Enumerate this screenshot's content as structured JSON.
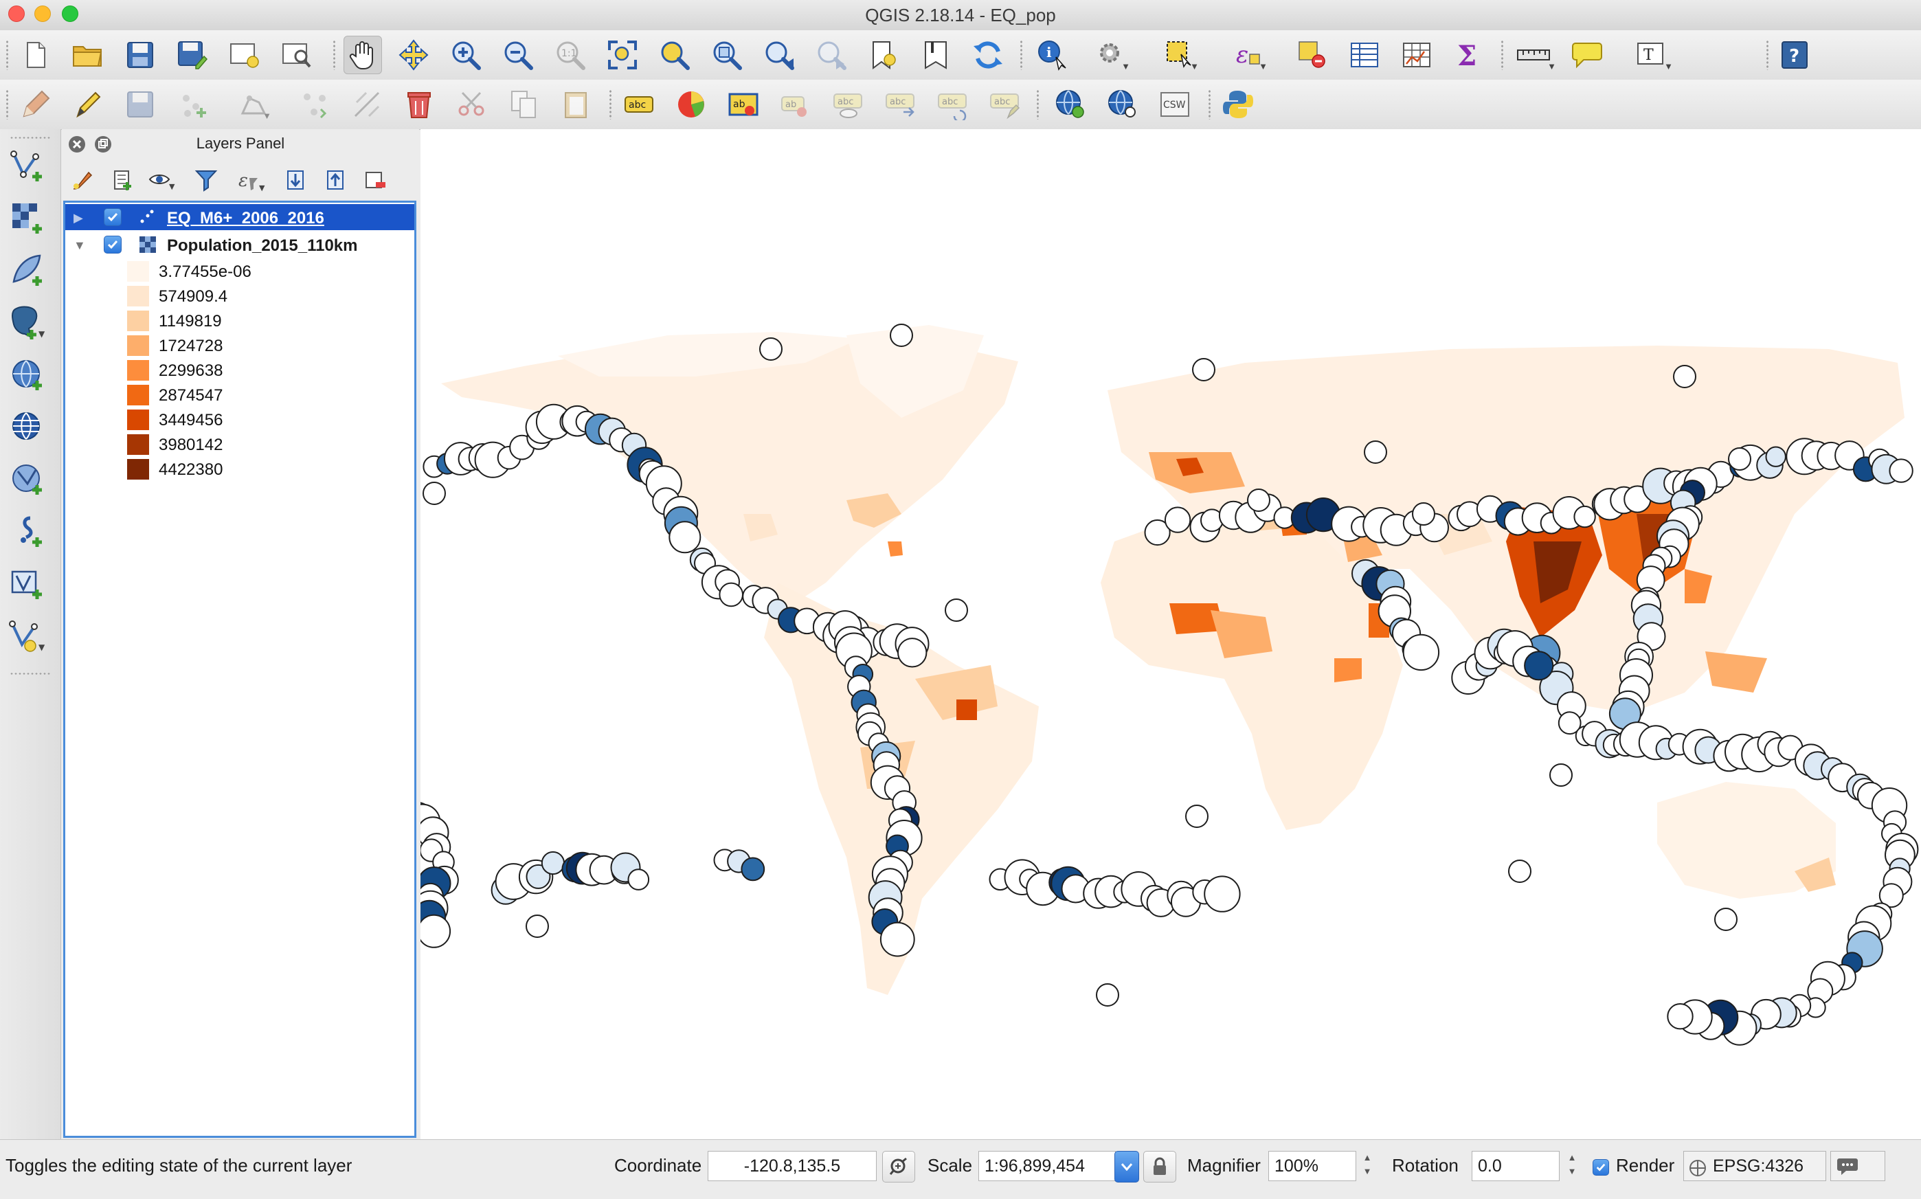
{
  "window": {
    "title": "QGIS 2.18.14 - EQ_pop"
  },
  "colors": {
    "selection": "#1a55c9",
    "accent": "#4b8dda",
    "quake_outline": "#1e1e1e"
  },
  "toolbar_top": [
    {
      "name": "new-project-icon"
    },
    {
      "name": "open-project-icon"
    },
    {
      "name": "save-project-icon"
    },
    {
      "name": "save-as-icon"
    },
    {
      "name": "new-print-composer-icon"
    },
    {
      "name": "composer-manager-icon"
    },
    {
      "name": "pan-map-icon",
      "selected": true
    },
    {
      "name": "pan-to-selection-icon"
    },
    {
      "name": "zoom-in-icon"
    },
    {
      "name": "zoom-out-icon"
    },
    {
      "name": "zoom-native-resolution-icon"
    },
    {
      "name": "zoom-full-icon"
    },
    {
      "name": "zoom-to-selection-icon"
    },
    {
      "name": "zoom-to-layer-icon"
    },
    {
      "name": "zoom-last-icon"
    },
    {
      "name": "zoom-next-icon"
    },
    {
      "name": "new-bookmark-icon"
    },
    {
      "name": "show-bookmarks-icon"
    },
    {
      "name": "refresh-icon"
    },
    {
      "name": "identify-features-icon"
    },
    {
      "name": "run-feature-action-icon"
    },
    {
      "name": "select-features-icon"
    },
    {
      "name": "select-by-expression-icon"
    },
    {
      "name": "deselect-all-icon"
    },
    {
      "name": "attribute-table-icon"
    },
    {
      "name": "field-calculator-icon"
    },
    {
      "name": "statistical-summary-icon"
    },
    {
      "name": "measure-line-icon"
    },
    {
      "name": "map-tips-icon"
    },
    {
      "name": "text-annotation-icon"
    },
    {
      "name": "help-icon"
    }
  ],
  "toolbar_digitize": [
    {
      "name": "toggle-editing-icon"
    },
    {
      "name": "current-edits-icon"
    },
    {
      "name": "save-layer-edits-icon"
    },
    {
      "name": "add-feature-icon"
    },
    {
      "name": "move-feature-icon"
    },
    {
      "name": "node-tool-icon"
    },
    {
      "name": "vertex-tool-icon"
    },
    {
      "name": "delete-selected-icon"
    },
    {
      "name": "cut-features-icon"
    },
    {
      "name": "copy-features-icon"
    },
    {
      "name": "paste-features-icon"
    },
    {
      "name": "layer-labeling-icon"
    },
    {
      "name": "layer-diagram-icon"
    },
    {
      "name": "pin-labels-icon"
    },
    {
      "name": "highlight-pinned-labels-icon"
    },
    {
      "name": "show-hide-labels-icon"
    },
    {
      "name": "move-label-icon"
    },
    {
      "name": "rotate-label-icon"
    },
    {
      "name": "change-label-icon"
    },
    {
      "name": "metasearch-icon"
    },
    {
      "name": "metasearch-browse-icon"
    },
    {
      "name": "csw-icon",
      "text": "CSW"
    },
    {
      "name": "python-console-icon"
    }
  ],
  "side_toolbar": [
    {
      "name": "add-vector-layer-icon"
    },
    {
      "name": "add-raster-layer-icon"
    },
    {
      "name": "add-spatialite-layer-icon"
    },
    {
      "name": "add-postgis-layer-icon"
    },
    {
      "name": "add-wms-layer-icon"
    },
    {
      "name": "add-wcs-layer-icon"
    },
    {
      "name": "add-wfs-layer-icon"
    },
    {
      "name": "add-delimited-text-layer-icon"
    },
    {
      "name": "add-virtual-layer-icon"
    },
    {
      "name": "new-shapefile-layer-icon"
    }
  ],
  "layers_panel": {
    "title": "Layers Panel",
    "layers": [
      {
        "name": "EQ_M6+_2006_2016",
        "checked": true,
        "selected": true,
        "expanded": false,
        "type": "point"
      },
      {
        "name": "Population_2015_110km",
        "checked": true,
        "selected": false,
        "expanded": true,
        "type": "raster",
        "legend": [
          {
            "label": "3.77455e-06",
            "color": "#fff5eb"
          },
          {
            "label": "574909.4",
            "color": "#fee6ce"
          },
          {
            "label": "1149819",
            "color": "#fdd0a2"
          },
          {
            "label": "1724728",
            "color": "#fdae6b"
          },
          {
            "label": "2299638",
            "color": "#fd8d3c"
          },
          {
            "label": "2874547",
            "color": "#f16913"
          },
          {
            "label": "3449456",
            "color": "#d94801"
          },
          {
            "label": "3980142",
            "color": "#a63603"
          },
          {
            "label": "4422380",
            "color": "#7f2704"
          }
        ]
      }
    ]
  },
  "statusbar": {
    "message": "Toggles the editing state of the current layer",
    "coordinate_label": "Coordinate",
    "coordinate_value": "-120.8,135.5",
    "scale_label": "Scale",
    "scale_value": "1:96,899,454",
    "magnifier_label": "Magnifier",
    "magnifier_value": "100%",
    "rotation_label": "Rotation",
    "rotation_value": "0.0",
    "render_label": "Render",
    "render_checked": true,
    "crs_label": "EPSG:4326"
  }
}
